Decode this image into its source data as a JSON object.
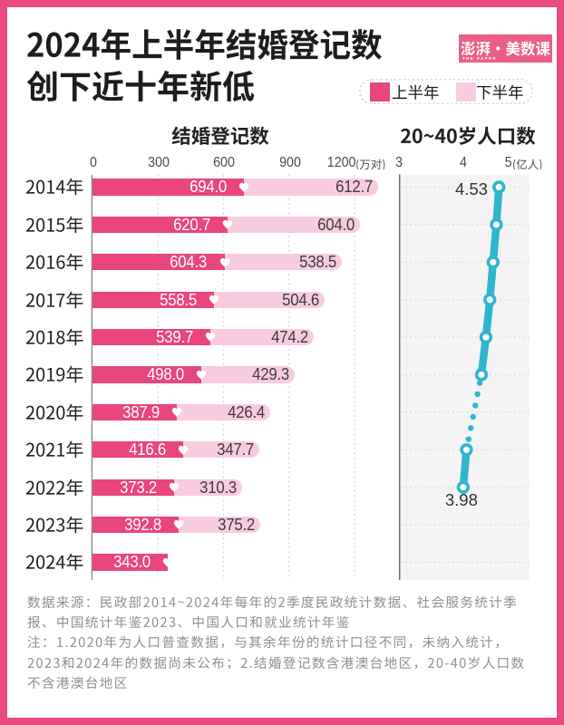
{
  "page": {
    "frame_color": "#ea4a7e",
    "background": "#ffffff"
  },
  "header": {
    "title_line1": "2024年上半年结婚登记数",
    "title_line2": "创下近十年新低",
    "logo": {
      "text": "澎湃·美数课",
      "subtext": "THE PAPER",
      "bg_color": "#eb5e88",
      "text_color": "#ffffff"
    }
  },
  "legend": {
    "items": [
      {
        "label": "上半年",
        "color": "#e9457f"
      },
      {
        "label": "下半年",
        "color": "#f8cbe0"
      }
    ]
  },
  "chart_data": [
    {
      "type": "bar",
      "orientation": "horizontal",
      "stacked": true,
      "title": "结婚登记数",
      "unit": "万对",
      "categories": [
        "2014年",
        "2015年",
        "2016年",
        "2017年",
        "2018年",
        "2019年",
        "2020年",
        "2021年",
        "2022年",
        "2023年",
        "2024年"
      ],
      "series": [
        {
          "name": "上半年",
          "color": "#e9457f",
          "values": [
            694.0,
            620.7,
            604.3,
            558.5,
            539.7,
            498.0,
            387.9,
            416.6,
            373.2,
            392.8,
            343.0
          ]
        },
        {
          "name": "下半年",
          "color": "#f8cbe0",
          "values": [
            612.7,
            604.0,
            538.5,
            504.6,
            474.2,
            429.3,
            426.4,
            347.7,
            310.3,
            375.2,
            null
          ]
        }
      ],
      "junction_marker": "white-heart",
      "xticks": [
        0,
        300,
        600,
        900,
        1200
      ],
      "xtick_labels": [
        "0",
        "300",
        "600",
        "900",
        "1200(万对)"
      ],
      "xlim": [
        0,
        1340
      ],
      "grid": "vertical-dashed"
    },
    {
      "type": "line",
      "title": "20~40岁人口数",
      "unit": "亿人",
      "categories": [
        "2014年",
        "2015年",
        "2016年",
        "2017年",
        "2018年",
        "2019年",
        "2020年",
        "2021年",
        "2022年",
        "2023年",
        "2024年"
      ],
      "values": [
        4.53,
        4.49,
        4.44,
        4.39,
        4.33,
        4.26,
        null,
        4.03,
        3.98,
        null,
        null
      ],
      "point_labels": {
        "first": "4.53",
        "last": "3.98"
      },
      "xticks": [
        3,
        4,
        5
      ],
      "xtick_labels": [
        "3",
        "4",
        "5(亿人)"
      ],
      "xlim": [
        3,
        5
      ],
      "color": "#2eb6ce",
      "gap_style": "dotted (2020 excluded)",
      "plot_background": "#f4f4f4",
      "grid": "horizontal-dashed"
    }
  ],
  "footer": {
    "lines": [
      "数据来源：民政部2014~2024年每年的2季度民政统计数据、社会服务统计季",
      "报、中国统计年鉴2023、中国人口和就业统计年鉴",
      "注：1.2020年为人口普查数据，与其余年份的统计口径不同，未纳入统计，",
      "2023和2024年的数据尚未公布；2.结婚登记数含港澳台地区，20-40岁人口数",
      "不含港澳台地区"
    ]
  }
}
